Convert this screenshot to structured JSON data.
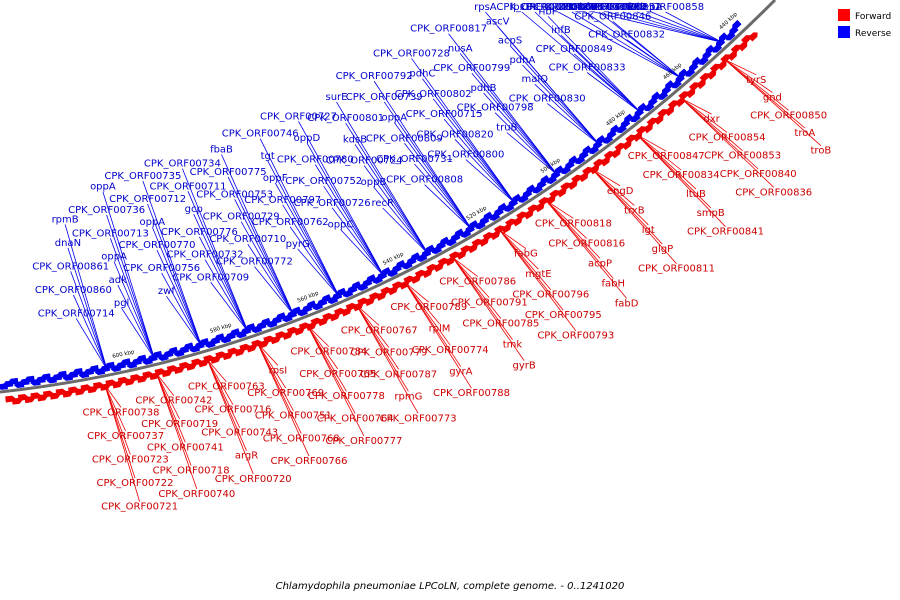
{
  "caption": "Chlamydophila pneumoniae LPCoLN, complete genome. - 0..1241020",
  "legend": {
    "forward_label": "Forward",
    "reverse_label": "Reverse",
    "forward_color": "#ff0000",
    "reverse_color": "#0000ff"
  },
  "ticks": [
    "440 kbp",
    "460 kbp",
    "480 kbp",
    "500 kbp",
    "520 kbp",
    "540 kbp",
    "560 kbp",
    "580 kbp",
    "600 kbp"
  ],
  "colors": {
    "backbone": "#666666",
    "forward": "#ee0000",
    "reverse": "#0000ee",
    "forward_text": "#cc0000",
    "reverse_text": "#0000cc"
  },
  "reverse_labels": [
    "CPK_ORF00858",
    "lepA",
    "folD",
    "CPK_ORF00851",
    "CPK_ORF00862",
    "CPK_ORF00838",
    "CPK_ORF00832",
    "CPK_ORF00846",
    "CPK_ORF00859",
    "rbfA",
    "CPK_ORF00857",
    "CPK_ORF00839",
    "CPK_ORF00833",
    "CPK_ORF00849",
    "infB",
    "ribF",
    "CPK_ORF00843",
    "lpxD",
    "CPK_ORF00830",
    "malQ",
    "pdhA",
    "acpS",
    "ascV",
    "rpsA",
    "truB",
    "CPK_ORF00798",
    "pdhB",
    "CPK_ORF00799",
    "nusA",
    "CPK_ORF00817",
    "CPK_ORF00800",
    "CPK_ORF00820",
    "CPK_ORF00715",
    "CPK_ORF00802",
    "pdhC",
    "CPK_ORF00728",
    "CPK_ORF00808",
    "CPK_ORF00731",
    "CPK_ORF00809",
    "oppA",
    "CPK_ORF00739",
    "CPK_ORF00792",
    "recR",
    "oppB",
    "CPK_ORF00724",
    "kdsB",
    "CPK_ORF00801",
    "surE",
    "oppC",
    "CPK_ORF00726",
    "CPK_ORF00752",
    "CPK_ORF00780",
    "oppD",
    "CPK_ORF00727",
    "pyrG",
    "CPK_ORF00762",
    "CPK_ORF00797",
    "oppF",
    "tgt",
    "CPK_ORF00746",
    "CPK_ORF00772",
    "CPK_ORF00710",
    "CPK_ORF00729",
    "CPK_ORF00753",
    "CPK_ORF00775",
    "fbaB",
    "CPK_ORF00709",
    "CPK_ORF00732",
    "CPK_ORF00776",
    "gcp",
    "CPK_ORF00711",
    "CPK_ORF00734",
    "zwf",
    "CPK_ORF00756",
    "CPK_ORF00770",
    "oppA",
    "CPK_ORF00712",
    "CPK_ORF00735",
    "pgl",
    "adk",
    "oppA",
    "CPK_ORF00713",
    "CPK_ORF00736",
    "oppA",
    "CPK_ORF00714",
    "CPK_ORF00860",
    "CPK_ORF00861",
    "dnaN",
    "rpmB"
  ],
  "forward_labels": [
    "tyrS",
    "gnd",
    "CPK_ORF00850",
    "troA",
    "troB",
    "dxr",
    "CPK_ORF00854",
    "CPK_ORF00853",
    "CPK_ORF00840",
    "CPK_ORF00836",
    "CPK_ORF00847",
    "CPK_ORF00834",
    "ltuB",
    "smpB",
    "CPK_ORF00841",
    "engD",
    "trxB",
    "lgt",
    "glgP",
    "CPK_ORF00811",
    "CPK_ORF00818",
    "CPK_ORF00816",
    "acpP",
    "fabH",
    "fabD",
    "fabG",
    "mgtE",
    "CPK_ORF00796",
    "CPK_ORF00795",
    "CPK_ORF00793",
    "CPK_ORF00786",
    "CPK_ORF00791",
    "CPK_ORF00785",
    "tmk",
    "gyrB",
    "CPK_ORF00789",
    "rplM",
    "CPK_ORF00774",
    "gyrA",
    "CPK_ORF00788",
    "CPK_ORF00767",
    "CPK_ORF00779",
    "CPK_ORF00787",
    "rpmG",
    "CPK_ORF00773",
    "CPK_ORF00784",
    "CPK_ORF00765",
    "CPK_ORF00778",
    "CPK_ORF00764",
    "CPK_ORF00777",
    "rpsI",
    "CPK_ORF00769",
    "CPK_ORF00751",
    "CPK_ORF00768",
    "CPK_ORF00766",
    "CPK_ORF00763",
    "CPK_ORF00716",
    "CPK_ORF00743",
    "argR",
    "CPK_ORF00720",
    "CPK_ORF00742",
    "CPK_ORF00719",
    "CPK_ORF00741",
    "CPK_ORF00718",
    "CPK_ORF00740",
    "CPK_ORF00738",
    "CPK_ORF00737",
    "CPK_ORF00723",
    "CPK_ORF00722",
    "CPK_ORF00721"
  ]
}
